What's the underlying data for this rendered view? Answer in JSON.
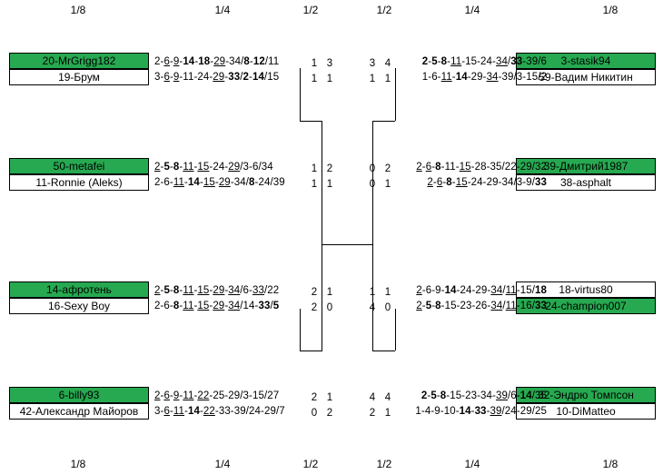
{
  "rounds": {
    "r16": "1/8",
    "qf": "1/4",
    "sf": "1/2"
  },
  "matches": [
    {
      "id": "L1",
      "side": "left",
      "team_top": "20-MrGrigg182",
      "team_bottom": "19-Брум",
      "winner": "top",
      "seq_top": [
        [
          "2-",
          ""
        ],
        [
          "6",
          "u"
        ],
        [
          "-",
          ""
        ],
        [
          "9",
          "u"
        ],
        [
          "-",
          ""
        ],
        [
          "14",
          "b"
        ],
        [
          "-",
          ""
        ],
        [
          "18",
          "b"
        ],
        [
          "-",
          ""
        ],
        [
          "29",
          "u"
        ],
        [
          "-34/",
          ""
        ],
        [
          "8",
          "b"
        ],
        [
          "-",
          ""
        ],
        [
          "12",
          "b"
        ],
        [
          "/11",
          ""
        ]
      ],
      "seq_bottom": [
        [
          "3-",
          ""
        ],
        [
          "6",
          "u"
        ],
        [
          "-",
          ""
        ],
        [
          "9",
          "u"
        ],
        [
          "-11-24-",
          ""
        ],
        [
          "29",
          "u"
        ],
        [
          "-",
          ""
        ],
        [
          "33",
          "b"
        ],
        [
          "/",
          ""
        ],
        [
          "2",
          "b"
        ],
        [
          "-",
          ""
        ],
        [
          "14",
          "b"
        ],
        [
          "/15",
          ""
        ]
      ],
      "qf_top": "1",
      "qf_bottom": "1",
      "sf_top": "3",
      "sf_bottom": "1"
    },
    {
      "id": "L2",
      "side": "left",
      "team_top": "50-metafei",
      "team_bottom": "11-Ronnie (Aleks)",
      "winner": "top",
      "seq_top": [
        [
          "2",
          "u"
        ],
        [
          "-",
          ""
        ],
        [
          "5",
          "b"
        ],
        [
          "-",
          ""
        ],
        [
          "8",
          "b"
        ],
        [
          "-",
          ""
        ],
        [
          "11",
          "u"
        ],
        [
          "-",
          ""
        ],
        [
          "15",
          "u"
        ],
        [
          "-24-",
          ""
        ],
        [
          "29",
          "u"
        ],
        [
          "/3-6/34",
          ""
        ]
      ],
      "seq_bottom": [
        [
          "2-6-",
          ""
        ],
        [
          "11",
          "u"
        ],
        [
          "-",
          ""
        ],
        [
          "14",
          "b"
        ],
        [
          "-",
          ""
        ],
        [
          "15",
          "u"
        ],
        [
          "-",
          ""
        ],
        [
          "29",
          "u"
        ],
        [
          "-34/",
          ""
        ],
        [
          "8",
          "b"
        ],
        [
          "-24/39",
          ""
        ]
      ],
      "qf_top": "1",
      "qf_bottom": "1",
      "sf_top": "2",
      "sf_bottom": "1"
    },
    {
      "id": "L3",
      "side": "left",
      "team_top": "14-афротень",
      "team_bottom": "16-Sexy Boy",
      "winner": "top",
      "seq_top": [
        [
          "2",
          "u"
        ],
        [
          "-",
          ""
        ],
        [
          "5",
          "b"
        ],
        [
          "-",
          ""
        ],
        [
          "8",
          "b"
        ],
        [
          "-",
          ""
        ],
        [
          "11",
          "u"
        ],
        [
          "-",
          ""
        ],
        [
          "15",
          "u"
        ],
        [
          "-",
          ""
        ],
        [
          "29",
          "u"
        ],
        [
          "-",
          ""
        ],
        [
          "34",
          "u"
        ],
        [
          "/6-",
          ""
        ],
        [
          "33",
          "u"
        ],
        [
          "/22",
          ""
        ]
      ],
      "seq_bottom": [
        [
          "2-6-",
          ""
        ],
        [
          "8",
          "b"
        ],
        [
          "-",
          ""
        ],
        [
          "11",
          "u"
        ],
        [
          "-",
          ""
        ],
        [
          "15",
          "u"
        ],
        [
          "-",
          ""
        ],
        [
          "29",
          "u"
        ],
        [
          "-",
          ""
        ],
        [
          "34",
          "u"
        ],
        [
          "/14-",
          ""
        ],
        [
          "33",
          "b"
        ],
        [
          "/",
          ""
        ],
        [
          "5",
          "b"
        ]
      ],
      "qf_top": "2",
      "qf_bottom": "2",
      "sf_top": "1",
      "sf_bottom": "0"
    },
    {
      "id": "L4",
      "side": "left",
      "team_top": "6-billy93",
      "team_bottom": "42-Александр Майоров",
      "winner": "top",
      "seq_top": [
        [
          "2",
          "u"
        ],
        [
          "-",
          ""
        ],
        [
          "6",
          "u"
        ],
        [
          "-",
          ""
        ],
        [
          "9",
          "u"
        ],
        [
          "-",
          ""
        ],
        [
          "11",
          "u"
        ],
        [
          "-",
          ""
        ],
        [
          "22",
          "u"
        ],
        [
          "-25-29/3-15/27",
          ""
        ]
      ],
      "seq_bottom": [
        [
          "3-",
          ""
        ],
        [
          "6",
          "u"
        ],
        [
          "-",
          ""
        ],
        [
          "11",
          "u"
        ],
        [
          "-",
          ""
        ],
        [
          "14",
          "b"
        ],
        [
          "-",
          ""
        ],
        [
          "22",
          "u"
        ],
        [
          "-33-39/24-29/7",
          ""
        ]
      ],
      "qf_top": "2",
      "qf_bottom": "0",
      "sf_top": "1",
      "sf_bottom": "2"
    },
    {
      "id": "R1",
      "side": "right",
      "team_top": "3-stasik94",
      "team_bottom": "59-Вадим Никитин",
      "winner": "top",
      "seq_top": [
        [
          "2",
          "b"
        ],
        [
          "-",
          ""
        ],
        [
          "5",
          "b"
        ],
        [
          "-",
          ""
        ],
        [
          "8",
          "b"
        ],
        [
          "-",
          ""
        ],
        [
          "11",
          "u"
        ],
        [
          "-15-24-",
          ""
        ],
        [
          "34",
          "u"
        ],
        [
          "/",
          ""
        ],
        [
          "33",
          "b"
        ],
        [
          "-39/6",
          ""
        ]
      ],
      "seq_bottom": [
        [
          "1-6-",
          ""
        ],
        [
          "11",
          "u"
        ],
        [
          "-",
          ""
        ],
        [
          "14",
          "b"
        ],
        [
          "-29-",
          ""
        ],
        [
          "34",
          "u"
        ],
        [
          "-39/3-15/2",
          ""
        ]
      ],
      "qf_top": "4",
      "qf_bottom": "1",
      "sf_top": "3",
      "sf_bottom": "1"
    },
    {
      "id": "R2",
      "side": "right",
      "team_top": "39-Дмитрий1987",
      "team_bottom": "38-asphalt",
      "winner": "top",
      "seq_top": [
        [
          "2",
          "u"
        ],
        [
          "-",
          ""
        ],
        [
          "6",
          "u"
        ],
        [
          "-",
          ""
        ],
        [
          "8",
          "b"
        ],
        [
          "-11-",
          ""
        ],
        [
          "15",
          "u"
        ],
        [
          "-28-35/22-29/32",
          ""
        ]
      ],
      "seq_bottom": [
        [
          "2",
          "u"
        ],
        [
          "-",
          ""
        ],
        [
          "6",
          "u"
        ],
        [
          "-",
          ""
        ],
        [
          "8",
          "b"
        ],
        [
          "-",
          ""
        ],
        [
          "15",
          "u"
        ],
        [
          "-24-29-34/3-9/",
          ""
        ],
        [
          "33",
          "b"
        ]
      ],
      "qf_top": "2",
      "qf_bottom": "1",
      "sf_top": "0",
      "sf_bottom": "0"
    },
    {
      "id": "R3",
      "side": "right",
      "team_top": "18-virtus80",
      "team_bottom": "24-champion007",
      "winner": "bottom",
      "seq_top": [
        [
          "2",
          "u"
        ],
        [
          "-6-9-",
          ""
        ],
        [
          "14",
          "b"
        ],
        [
          "-24-29-",
          ""
        ],
        [
          "34",
          "u"
        ],
        [
          "/",
          ""
        ],
        [
          "11",
          "u"
        ],
        [
          "-15/",
          ""
        ],
        [
          "18",
          "b"
        ]
      ],
      "seq_bottom": [
        [
          "2",
          "u"
        ],
        [
          "-",
          ""
        ],
        [
          "5",
          "b"
        ],
        [
          "-",
          ""
        ],
        [
          "8",
          "b"
        ],
        [
          "-15-23-26-",
          ""
        ],
        [
          "34",
          "u"
        ],
        [
          "/",
          ""
        ],
        [
          "11",
          "u"
        ],
        [
          "-16/",
          ""
        ],
        [
          "33",
          "b"
        ]
      ],
      "qf_top": "1",
      "qf_bottom": "0",
      "sf_top": "1",
      "sf_bottom": "4"
    },
    {
      "id": "R4",
      "side": "right",
      "team_top": "32-Эндрю Томпсон",
      "team_bottom": "10-DiMatteo",
      "winner": "top",
      "seq_top": [
        [
          "2",
          "b"
        ],
        [
          "-",
          ""
        ],
        [
          "5",
          "b"
        ],
        [
          "-",
          ""
        ],
        [
          "8",
          "b"
        ],
        [
          "-15-23-34-",
          ""
        ],
        [
          "39",
          "u"
        ],
        [
          "/6-",
          ""
        ],
        [
          "14",
          "b"
        ],
        [
          "/35",
          ""
        ]
      ],
      "seq_bottom": [
        [
          "1-4-9-10-",
          ""
        ],
        [
          "14",
          "b"
        ],
        [
          "-",
          ""
        ],
        [
          "33",
          "b"
        ],
        [
          "-",
          ""
        ],
        [
          "39",
          "u"
        ],
        [
          "/24-29/25",
          ""
        ]
      ],
      "qf_top": "4",
      "qf_bottom": "1",
      "sf_top": "4",
      "sf_bottom": "2"
    }
  ]
}
